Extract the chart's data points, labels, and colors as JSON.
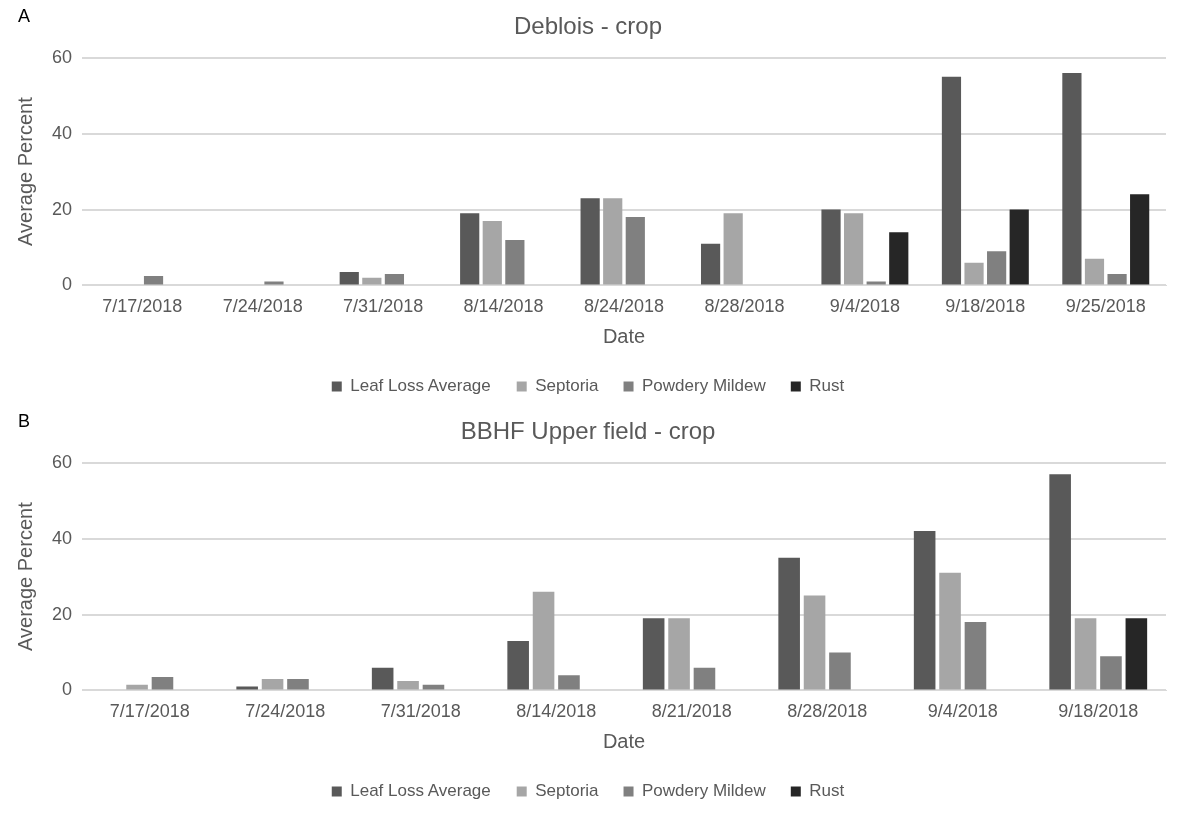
{
  "chart_data": [
    {
      "type": "bar",
      "title": "Deblois - crop",
      "annotations": [
        "A"
      ],
      "xlabel": "Date",
      "ylabel": "Average Percent",
      "categories": [
        "7/17/2018",
        "7/24/2018",
        "7/31/2018",
        "8/14/2018",
        "8/24/2018",
        "8/28/2018",
        "9/4/2018",
        "9/18/2018",
        "9/25/2018"
      ],
      "series": [
        {
          "name": "Leaf Loss Average",
          "color": "#595959",
          "values": [
            0,
            0,
            3.5,
            19,
            23,
            11,
            20,
            55,
            56
          ]
        },
        {
          "name": "Septoria",
          "color": "#a6a6a6",
          "values": [
            0,
            0,
            2,
            17,
            23,
            19,
            19,
            6,
            7
          ]
        },
        {
          "name": "Powdery Mildew",
          "color": "#808080",
          "values": [
            2.5,
            1,
            3,
            12,
            18,
            0,
            1,
            9,
            3
          ]
        },
        {
          "name": "Rust",
          "color": "#262626",
          "values": [
            0,
            0,
            0,
            0,
            0,
            0,
            14,
            20,
            24
          ]
        }
      ],
      "ylim": [
        0,
        60
      ],
      "yticks": [
        0,
        20,
        40,
        60
      ],
      "grid": "y",
      "legend": "bottom"
    },
    {
      "type": "bar",
      "title": "BBHF Upper field - crop",
      "annotations": [
        "B"
      ],
      "xlabel": "Date",
      "ylabel": "Average Percent",
      "categories": [
        "7/17/2018",
        "7/24/2018",
        "7/31/2018",
        "8/14/2018",
        "8/21/2018",
        "8/28/2018",
        "9/4/2018",
        "9/18/2018"
      ],
      "series": [
        {
          "name": "Leaf Loss Average",
          "color": "#595959",
          "values": [
            0,
            1,
            6,
            13,
            19,
            35,
            42,
            57
          ]
        },
        {
          "name": "Septoria",
          "color": "#a6a6a6",
          "values": [
            1.5,
            3,
            2.5,
            26,
            19,
            25,
            31,
            19
          ]
        },
        {
          "name": "Powdery Mildew",
          "color": "#808080",
          "values": [
            3.5,
            3,
            1.5,
            4,
            6,
            10,
            18,
            9
          ]
        },
        {
          "name": "Rust",
          "color": "#262626",
          "values": [
            0,
            0,
            0,
            0,
            0,
            0,
            0,
            19
          ]
        }
      ],
      "ylim": [
        0,
        60
      ],
      "yticks": [
        0,
        20,
        40,
        60
      ],
      "grid": "y",
      "legend": "bottom"
    }
  ]
}
